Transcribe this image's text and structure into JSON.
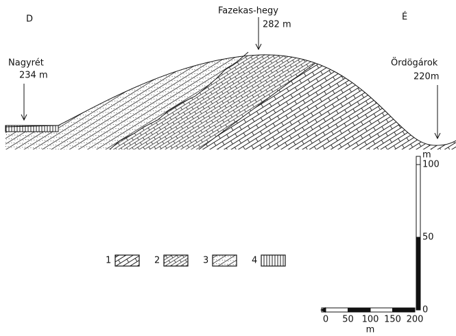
{
  "header": {
    "left": "D",
    "right": "É"
  },
  "labels": [
    {
      "name": "Fazekas-hegy",
      "elevation": "282 m"
    },
    {
      "name": "Nagyrét",
      "elevation": "234 m"
    },
    {
      "name": "Ördögárok",
      "elevation": "220m"
    }
  ],
  "legend": [
    "1",
    "2",
    "3",
    "4"
  ],
  "vertical_scale": {
    "unit": "m",
    "ticks": [
      0,
      50,
      100
    ]
  },
  "horizontal_scale": {
    "unit": "m",
    "ticks": [
      0,
      50,
      100,
      150,
      200
    ]
  }
}
